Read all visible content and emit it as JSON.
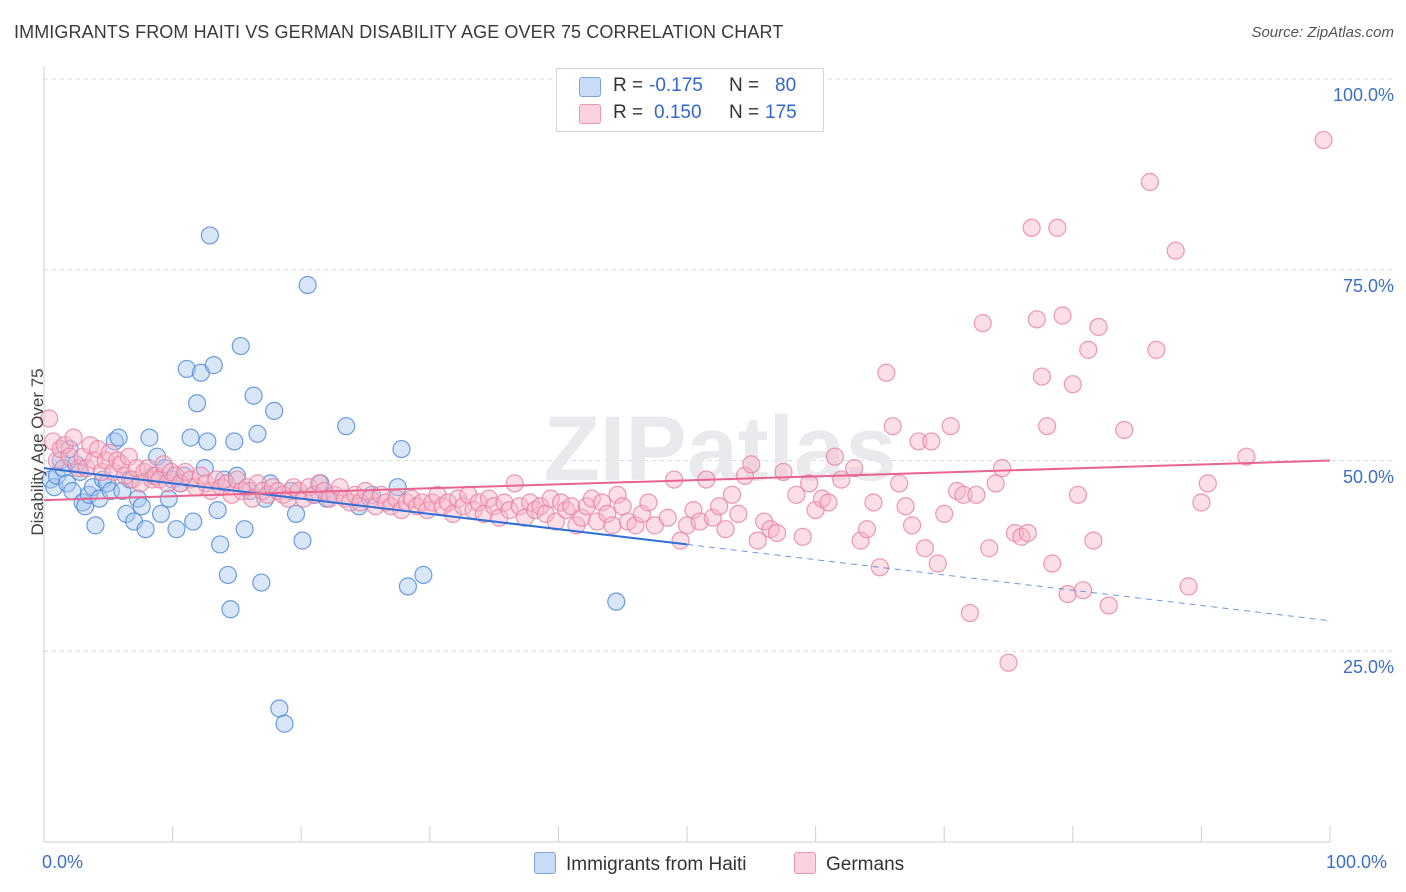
{
  "title": "IMMIGRANTS FROM HAITI VS GERMAN DISABILITY AGE OVER 75 CORRELATION CHART",
  "source": "Source: ZipAtlas.com",
  "watermark": "ZIPatlas",
  "legend": {
    "rows": [
      {
        "r_label": "R =",
        "r_value": "-0.175",
        "n_label": "N =",
        "n_value": "80",
        "color": "#a8c8f0"
      },
      {
        "r_label": "R =",
        "r_value": "0.150",
        "n_label": "N =",
        "n_value": "175",
        "color": "#f7b6c8"
      }
    ]
  },
  "bottom_legend": [
    {
      "label": "Immigrants from Haiti",
      "color": "#a8c8f0"
    },
    {
      "label": "Germans",
      "color": "#f7b6c8"
    }
  ],
  "chart_data": {
    "type": "scatter",
    "title": "IMMIGRANTS FROM HAITI VS GERMAN DISABILITY AGE OVER 75 CORRELATION CHART",
    "xlabel": "",
    "ylabel": "Disability Age Over 75",
    "xlim": [
      0,
      100
    ],
    "ylim": [
      0,
      105
    ],
    "x_tick_labels": [
      "0.0%",
      "100.0%"
    ],
    "y_tick_labels": [
      "25.0%",
      "50.0%",
      "75.0%",
      "100.0%"
    ],
    "y_ticks": [
      25,
      50,
      75,
      100
    ],
    "grid": true,
    "legend_position": "top-center",
    "series": [
      {
        "name": "Immigrants from Haiti",
        "color": "#4a86d8",
        "fill": "#a8c8f0",
        "trend": {
          "x0": 0,
          "y0": 49.0,
          "x1": 50,
          "y1": 39.0,
          "dashed_to_x": 100,
          "dashed_to_y": 29.0,
          "color": "#2f6fd6"
        },
        "points": [
          [
            0.5,
            47.5
          ],
          [
            0.8,
            46.5
          ],
          [
            1.0,
            48.0
          ],
          [
            1.3,
            50.0
          ],
          [
            1.5,
            49.0
          ],
          [
            1.8,
            47.0
          ],
          [
            2.0,
            51.5
          ],
          [
            2.2,
            46.0
          ],
          [
            2.5,
            49.5
          ],
          [
            2.8,
            48.5
          ],
          [
            3.0,
            44.5
          ],
          [
            3.2,
            44.0
          ],
          [
            3.5,
            45.5
          ],
          [
            3.8,
            46.5
          ],
          [
            4.0,
            41.5
          ],
          [
            4.3,
            45.0
          ],
          [
            4.6,
            47.5
          ],
          [
            4.9,
            47.0
          ],
          [
            5.2,
            46.0
          ],
          [
            5.5,
            52.5
          ],
          [
            5.8,
            53.0
          ],
          [
            6.1,
            46.0
          ],
          [
            6.4,
            43.0
          ],
          [
            6.7,
            47.5
          ],
          [
            7.0,
            42.0
          ],
          [
            7.3,
            45.0
          ],
          [
            7.6,
            44.0
          ],
          [
            7.9,
            41.0
          ],
          [
            8.2,
            53.0
          ],
          [
            8.5,
            48.0
          ],
          [
            8.8,
            50.5
          ],
          [
            9.1,
            43.0
          ],
          [
            9.4,
            49.0
          ],
          [
            9.7,
            45.0
          ],
          [
            10.0,
            47.5
          ],
          [
            10.3,
            41.0
          ],
          [
            10.6,
            47.0
          ],
          [
            10.9,
            48.0
          ],
          [
            11.1,
            62.0
          ],
          [
            11.4,
            53.0
          ],
          [
            11.6,
            42.0
          ],
          [
            11.9,
            57.5
          ],
          [
            12.2,
            61.5
          ],
          [
            12.5,
            49.0
          ],
          [
            12.7,
            52.5
          ],
          [
            12.9,
            79.5
          ],
          [
            13.2,
            62.5
          ],
          [
            13.5,
            43.5
          ],
          [
            13.7,
            39.0
          ],
          [
            14.0,
            47.5
          ],
          [
            14.3,
            35.0
          ],
          [
            14.5,
            30.5
          ],
          [
            14.8,
            52.5
          ],
          [
            15.0,
            48.0
          ],
          [
            15.3,
            65.0
          ],
          [
            15.6,
            41.0
          ],
          [
            16.0,
            46.0
          ],
          [
            16.3,
            58.5
          ],
          [
            16.6,
            53.5
          ],
          [
            16.9,
            34.0
          ],
          [
            17.2,
            45.0
          ],
          [
            17.6,
            47.0
          ],
          [
            17.9,
            56.5
          ],
          [
            18.3,
            17.5
          ],
          [
            18.7,
            15.5
          ],
          [
            19.2,
            46.0
          ],
          [
            19.6,
            43.0
          ],
          [
            20.1,
            39.5
          ],
          [
            20.5,
            73.0
          ],
          [
            21.0,
            45.5
          ],
          [
            21.5,
            47.0
          ],
          [
            22.0,
            45.0
          ],
          [
            23.5,
            54.5
          ],
          [
            24.5,
            44.0
          ],
          [
            25.5,
            45.5
          ],
          [
            27.5,
            46.5
          ],
          [
            27.8,
            51.5
          ],
          [
            28.3,
            33.5
          ],
          [
            29.5,
            35.0
          ],
          [
            44.5,
            31.5
          ]
        ]
      },
      {
        "name": "Germans",
        "color": "#e87fa3",
        "fill": "#f7b6c8",
        "trend": {
          "x0": 0,
          "y0": 44.8,
          "x1": 100,
          "y1": 50.0,
          "color": "#e8648f"
        },
        "points": [
          [
            0.4,
            55.5
          ],
          [
            0.7,
            52.5
          ],
          [
            1.0,
            50.0
          ],
          [
            1.3,
            51.5
          ],
          [
            1.6,
            52.0
          ],
          [
            2.0,
            50.5
          ],
          [
            2.3,
            53.0
          ],
          [
            2.7,
            49.0
          ],
          [
            3.0,
            50.5
          ],
          [
            3.3,
            49.0
          ],
          [
            3.6,
            52.0
          ],
          [
            3.9,
            50.0
          ],
          [
            4.2,
            51.5
          ],
          [
            4.5,
            48.5
          ],
          [
            4.8,
            50.0
          ],
          [
            5.1,
            51.0
          ],
          [
            5.4,
            48.5
          ],
          [
            5.7,
            50.0
          ],
          [
            6.0,
            49.5
          ],
          [
            6.3,
            48.0
          ],
          [
            6.6,
            50.5
          ],
          [
            6.9,
            47.5
          ],
          [
            7.2,
            49.0
          ],
          [
            7.5,
            47.0
          ],
          [
            7.8,
            48.5
          ],
          [
            8.1,
            49.0
          ],
          [
            8.4,
            47.5
          ],
          [
            8.7,
            48.0
          ],
          [
            9.0,
            47.5
          ],
          [
            9.3,
            49.5
          ],
          [
            9.6,
            47.0
          ],
          [
            9.9,
            48.5
          ],
          [
            10.2,
            48.0
          ],
          [
            10.6,
            47.0
          ],
          [
            11.0,
            48.5
          ],
          [
            11.4,
            47.5
          ],
          [
            11.8,
            46.5
          ],
          [
            12.2,
            48.0
          ],
          [
            12.6,
            47.0
          ],
          [
            13.0,
            46.0
          ],
          [
            13.4,
            47.5
          ],
          [
            13.8,
            46.5
          ],
          [
            14.2,
            47.0
          ],
          [
            14.6,
            45.5
          ],
          [
            15.0,
            47.5
          ],
          [
            15.4,
            46.0
          ],
          [
            15.8,
            46.5
          ],
          [
            16.2,
            45.0
          ],
          [
            16.6,
            47.0
          ],
          [
            17.0,
            46.0
          ],
          [
            17.4,
            45.5
          ],
          [
            17.8,
            46.5
          ],
          [
            18.2,
            46.0
          ],
          [
            18.6,
            45.5
          ],
          [
            19.0,
            45.0
          ],
          [
            19.4,
            46.5
          ],
          [
            19.8,
            46.0
          ],
          [
            20.2,
            45.0
          ],
          [
            20.6,
            46.5
          ],
          [
            21.0,
            45.5
          ],
          [
            21.4,
            47.0
          ],
          [
            21.8,
            46.0
          ],
          [
            22.2,
            45.0
          ],
          [
            22.6,
            45.5
          ],
          [
            23.0,
            46.5
          ],
          [
            23.4,
            45.0
          ],
          [
            23.8,
            44.5
          ],
          [
            24.2,
            45.5
          ],
          [
            24.6,
            44.5
          ],
          [
            25.0,
            46.0
          ],
          [
            25.4,
            45.0
          ],
          [
            25.8,
            44.0
          ],
          [
            26.2,
            45.5
          ],
          [
            26.6,
            44.5
          ],
          [
            27.0,
            44.0
          ],
          [
            27.4,
            45.0
          ],
          [
            27.8,
            43.5
          ],
          [
            28.2,
            44.5
          ],
          [
            28.6,
            45.0
          ],
          [
            29.0,
            44.0
          ],
          [
            29.4,
            44.5
          ],
          [
            29.8,
            43.5
          ],
          [
            30.2,
            44.5
          ],
          [
            30.6,
            45.5
          ],
          [
            31.0,
            44.0
          ],
          [
            31.4,
            44.5
          ],
          [
            31.8,
            43.0
          ],
          [
            32.2,
            45.0
          ],
          [
            32.6,
            44.0
          ],
          [
            33.0,
            45.5
          ],
          [
            33.4,
            43.5
          ],
          [
            33.8,
            44.5
          ],
          [
            34.2,
            43.0
          ],
          [
            34.6,
            45.0
          ],
          [
            35.0,
            44.0
          ],
          [
            35.4,
            42.5
          ],
          [
            35.8,
            44.5
          ],
          [
            36.2,
            43.5
          ],
          [
            36.6,
            47.0
          ],
          [
            37.0,
            44.0
          ],
          [
            37.4,
            42.5
          ],
          [
            37.8,
            44.5
          ],
          [
            38.2,
            43.5
          ],
          [
            38.6,
            44.0
          ],
          [
            39.0,
            43.0
          ],
          [
            39.4,
            45.0
          ],
          [
            39.8,
            42.0
          ],
          [
            40.2,
            44.5
          ],
          [
            40.6,
            43.5
          ],
          [
            41.0,
            44.0
          ],
          [
            41.4,
            41.5
          ],
          [
            41.8,
            42.5
          ],
          [
            42.2,
            44.0
          ],
          [
            42.6,
            45.0
          ],
          [
            43.0,
            42.0
          ],
          [
            43.4,
            44.5
          ],
          [
            43.8,
            43.0
          ],
          [
            44.2,
            41.5
          ],
          [
            44.6,
            45.5
          ],
          [
            45.0,
            44.0
          ],
          [
            45.4,
            42.0
          ],
          [
            46.0,
            41.5
          ],
          [
            46.5,
            43.0
          ],
          [
            47.0,
            44.5
          ],
          [
            47.5,
            41.5
          ],
          [
            48.5,
            42.5
          ],
          [
            49.0,
            47.5
          ],
          [
            49.5,
            39.5
          ],
          [
            50.0,
            41.5
          ],
          [
            50.5,
            43.5
          ],
          [
            51.0,
            42.0
          ],
          [
            51.5,
            47.5
          ],
          [
            52.0,
            42.5
          ],
          [
            52.5,
            44.0
          ],
          [
            53.0,
            41.0
          ],
          [
            53.5,
            45.5
          ],
          [
            54.0,
            43.0
          ],
          [
            54.5,
            48.0
          ],
          [
            55.0,
            49.5
          ],
          [
            55.5,
            39.5
          ],
          [
            56.0,
            42.0
          ],
          [
            56.5,
            41.0
          ],
          [
            57.0,
            40.5
          ],
          [
            57.5,
            48.5
          ],
          [
            58.5,
            45.5
          ],
          [
            59.0,
            40.0
          ],
          [
            59.5,
            47.0
          ],
          [
            60.0,
            43.5
          ],
          [
            60.5,
            45.0
          ],
          [
            61.0,
            44.5
          ],
          [
            61.5,
            50.5
          ],
          [
            62.0,
            47.5
          ],
          [
            63.0,
            49.0
          ],
          [
            63.5,
            39.5
          ],
          [
            64.0,
            41.0
          ],
          [
            64.5,
            44.5
          ],
          [
            65.0,
            36.0
          ],
          [
            65.5,
            61.5
          ],
          [
            66.0,
            54.5
          ],
          [
            66.5,
            47.0
          ],
          [
            67.0,
            44.0
          ],
          [
            67.5,
            41.5
          ],
          [
            68.0,
            52.5
          ],
          [
            68.5,
            38.5
          ],
          [
            69.0,
            52.5
          ],
          [
            69.5,
            36.5
          ],
          [
            70.0,
            43.0
          ],
          [
            70.5,
            54.5
          ],
          [
            71.0,
            46.0
          ],
          [
            71.5,
            45.5
          ],
          [
            72.0,
            30.0
          ],
          [
            72.5,
            45.5
          ],
          [
            73.0,
            68.0
          ],
          [
            73.5,
            38.5
          ],
          [
            74.0,
            47.0
          ],
          [
            74.5,
            49.0
          ],
          [
            75.0,
            23.5
          ],
          [
            75.5,
            40.5
          ],
          [
            76.0,
            40.0
          ],
          [
            76.5,
            40.5
          ],
          [
            76.8,
            80.5
          ],
          [
            77.2,
            68.5
          ],
          [
            77.6,
            61.0
          ],
          [
            78.0,
            54.5
          ],
          [
            78.4,
            36.5
          ],
          [
            78.8,
            80.5
          ],
          [
            79.2,
            69.0
          ],
          [
            79.6,
            32.5
          ],
          [
            80.0,
            60.0
          ],
          [
            80.4,
            45.5
          ],
          [
            80.8,
            33.0
          ],
          [
            81.2,
            64.5
          ],
          [
            81.6,
            39.5
          ],
          [
            82.0,
            67.5
          ],
          [
            82.8,
            31.0
          ],
          [
            84.0,
            54.0
          ],
          [
            86.0,
            86.5
          ],
          [
            86.5,
            64.5
          ],
          [
            88.0,
            77.5
          ],
          [
            89.0,
            33.5
          ],
          [
            90.0,
            44.5
          ],
          [
            90.5,
            47.0
          ],
          [
            93.5,
            50.5
          ],
          [
            99.5,
            92.0
          ]
        ]
      }
    ]
  }
}
